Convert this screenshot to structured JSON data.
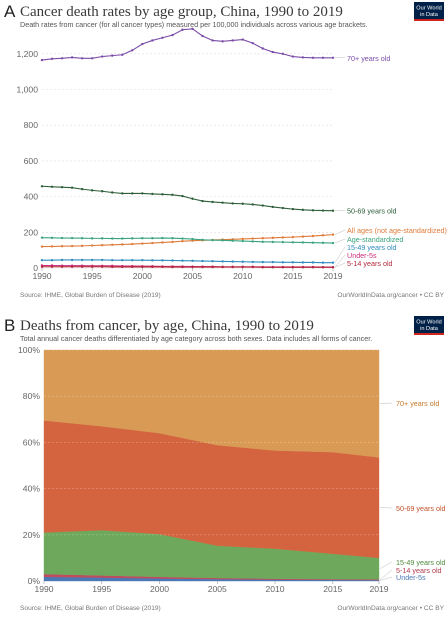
{
  "top": {
    "letter": "A",
    "title": "Cancer death rates by age group, China, 1990 to 2019",
    "subtitle": "Death rates from cancer (for all cancer types) measured per 100,000 individuals across various age brackets.",
    "source": "Source: IHME, Global Burden of Disease (2019)",
    "credit": "OurWorldInData.org/cancer • CC BY"
  },
  "bottom": {
    "letter": "B",
    "title": "Deaths from cancer, by age, China, 1990 to 2019",
    "subtitle": "Total annual cancer deaths differentiated by age category across both sexes. Data includes all forms of cancer.",
    "source": "Source: IHME, Global Burden of Disease (2019)",
    "credit": "OurWorldInData.org/cancer • CC BY"
  },
  "logo": {
    "line1": "Our World",
    "line2": "in Data",
    "color": "#002147",
    "accent": "#ce261e"
  },
  "chart_data": [
    {
      "type": "line",
      "title": "Cancer death rates by age group, China, 1990 to 2019",
      "x": [
        1990,
        1991,
        1992,
        1993,
        1994,
        1995,
        1996,
        1997,
        1998,
        1999,
        2000,
        2001,
        2002,
        2003,
        2004,
        2005,
        2006,
        2007,
        2008,
        2009,
        2010,
        2011,
        2012,
        2013,
        2014,
        2015,
        2016,
        2017,
        2018,
        2019
      ],
      "xticks": [
        1990,
        1995,
        2000,
        2005,
        2010,
        2015,
        2019
      ],
      "yticks": [
        0,
        200,
        400,
        600,
        800,
        1000,
        1200
      ],
      "ytick_labels": [
        "0",
        "200",
        "400",
        "600",
        "800",
        "1,000",
        "1,200"
      ],
      "ylim": [
        0,
        1300
      ],
      "grid": "horizontal dashed",
      "series": [
        {
          "name": "70+ years old",
          "color": "#7b4ca8",
          "values": [
            1165,
            1172,
            1175,
            1180,
            1175,
            1175,
            1185,
            1190,
            1195,
            1220,
            1255,
            1275,
            1290,
            1305,
            1335,
            1340,
            1300,
            1275,
            1270,
            1275,
            1280,
            1260,
            1230,
            1210,
            1200,
            1185,
            1180,
            1178,
            1178,
            1178
          ]
        },
        {
          "name": "50-69 years old",
          "color": "#2e5e3a",
          "values": [
            458,
            455,
            453,
            450,
            442,
            435,
            430,
            423,
            418,
            418,
            418,
            415,
            413,
            410,
            403,
            388,
            375,
            370,
            366,
            362,
            360,
            356,
            350,
            342,
            336,
            330,
            326,
            323,
            322,
            321
          ]
        },
        {
          "name": "All ages (not age-standardized)",
          "color": "#e07b39",
          "values": [
            120,
            121,
            122,
            123,
            124,
            126,
            128,
            130,
            132,
            134,
            137,
            140,
            143,
            146,
            150,
            153,
            155,
            157,
            159,
            161,
            163,
            165,
            167,
            169,
            171,
            173,
            176,
            179,
            183,
            187
          ]
        },
        {
          "name": "Age-standardized",
          "color": "#3aa37d",
          "values": [
            170,
            169,
            168,
            168,
            167,
            166,
            166,
            165,
            165,
            166,
            167,
            167,
            168,
            167,
            165,
            162,
            158,
            156,
            155,
            153,
            151,
            149,
            147,
            146,
            145,
            144,
            143,
            142,
            141,
            140
          ]
        },
        {
          "name": "15-49 years old",
          "color": "#2d8bbf",
          "values": [
            44,
            44,
            45,
            45,
            45,
            45,
            45,
            44,
            44,
            44,
            44,
            43,
            43,
            42,
            41,
            40,
            39,
            38,
            37,
            36,
            35,
            34,
            33,
            33,
            32,
            32,
            31,
            31,
            30,
            30
          ]
        },
        {
          "name": "Under-5s",
          "color": "#c92e7b",
          "values": [
            14,
            14,
            13,
            13,
            13,
            12,
            12,
            12,
            11,
            11,
            10,
            10,
            9,
            9,
            9,
            8,
            8,
            8,
            7,
            7,
            7,
            7,
            6,
            6,
            6,
            6,
            6,
            6,
            5,
            5
          ]
        },
        {
          "name": "5-14 years old",
          "color": "#b5283c",
          "values": [
            7,
            7,
            7,
            7,
            7,
            7,
            7,
            6,
            6,
            6,
            6,
            6,
            6,
            5,
            5,
            5,
            5,
            5,
            5,
            5,
            5,
            5,
            4,
            4,
            4,
            4,
            4,
            4,
            4,
            4
          ]
        }
      ]
    },
    {
      "type": "area",
      "stacked": "percent",
      "title": "Deaths from cancer, by age, China, 1990 to 2019",
      "x": [
        1990,
        1995,
        2000,
        2005,
        2010,
        2015,
        2019
      ],
      "xticks": [
        1990,
        1995,
        2000,
        2005,
        2010,
        2015,
        2019
      ],
      "yticks": [
        0,
        20,
        40,
        60,
        80,
        100
      ],
      "ytick_labels": [
        "0%",
        "20%",
        "40%",
        "60%",
        "80%",
        "100%"
      ],
      "ylim": [
        0,
        100
      ],
      "series": [
        {
          "name": "Under-5s",
          "color": "#4a78b5",
          "values": [
            1.8,
            1.5,
            1.1,
            0.8,
            0.6,
            0.5,
            0.4
          ]
        },
        {
          "name": "5-14 years old",
          "color": "#c04a5e",
          "values": [
            1.2,
            0.9,
            0.7,
            0.5,
            0.4,
            0.3,
            0.3
          ]
        },
        {
          "name": "15-49 years old",
          "color": "#6ea85c",
          "values": [
            18.0,
            19.6,
            18.5,
            14.0,
            13.0,
            11.0,
            9.3
          ]
        },
        {
          "name": "50-69 years old",
          "color": "#d4643f",
          "values": [
            48.5,
            45.0,
            43.7,
            43.5,
            42.5,
            44.0,
            43.5
          ]
        },
        {
          "name": "70+ years old",
          "color": "#d89a55",
          "values": [
            30.5,
            33.0,
            36.0,
            41.2,
            43.5,
            44.2,
            46.5
          ]
        }
      ]
    }
  ]
}
